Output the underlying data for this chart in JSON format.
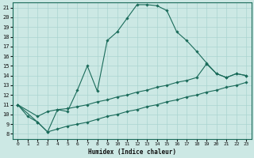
{
  "bg_color": "#cce8e4",
  "grid_color": "#aad4d0",
  "line_color": "#1a6b5a",
  "marker_color": "#1a6b5a",
  "xlabel": "Humidex (Indice chaleur)",
  "xlim": [
    -0.5,
    23.5
  ],
  "ylim": [
    7.5,
    21.5
  ],
  "yticks": [
    8,
    9,
    10,
    11,
    12,
    13,
    14,
    15,
    16,
    17,
    18,
    19,
    20,
    21
  ],
  "xticks": [
    0,
    1,
    2,
    3,
    4,
    5,
    6,
    7,
    8,
    9,
    10,
    11,
    12,
    13,
    14,
    15,
    16,
    17,
    18,
    19,
    20,
    21,
    22,
    23
  ],
  "line1": {
    "x": [
      0,
      1,
      2,
      3,
      4,
      5,
      6,
      7,
      8,
      9,
      10,
      11,
      12,
      13,
      14,
      15,
      16,
      17,
      18,
      19,
      20,
      21,
      22,
      23
    ],
    "y": [
      11.0,
      9.8,
      9.2,
      8.2,
      10.5,
      10.3,
      12.5,
      15.0,
      12.4,
      17.6,
      18.5,
      19.9,
      21.3,
      21.3,
      21.2,
      20.7,
      18.5,
      17.6,
      16.5,
      15.3,
      14.2,
      13.8,
      14.2,
      14.0
    ]
  },
  "line2": {
    "x": [
      0,
      2,
      3,
      4,
      5,
      6,
      7,
      8,
      9,
      10,
      11,
      12,
      13,
      14,
      15,
      16,
      17,
      18,
      19,
      20,
      21,
      22,
      23
    ],
    "y": [
      11.0,
      9.8,
      10.3,
      10.5,
      10.6,
      10.8,
      11.0,
      11.3,
      11.5,
      11.8,
      12.0,
      12.3,
      12.5,
      12.8,
      13.0,
      13.3,
      13.5,
      13.8,
      15.2,
      14.2,
      13.8,
      14.2,
      14.0
    ]
  },
  "line3": {
    "x": [
      0,
      2,
      3,
      4,
      5,
      6,
      7,
      8,
      9,
      10,
      11,
      12,
      13,
      14,
      15,
      16,
      17,
      18,
      19,
      20,
      21,
      22,
      23
    ],
    "y": [
      11.0,
      9.2,
      8.2,
      8.5,
      8.8,
      9.0,
      9.2,
      9.5,
      9.8,
      10.0,
      10.3,
      10.5,
      10.8,
      11.0,
      11.3,
      11.5,
      11.8,
      12.0,
      12.3,
      12.5,
      12.8,
      13.0,
      13.3
    ]
  }
}
